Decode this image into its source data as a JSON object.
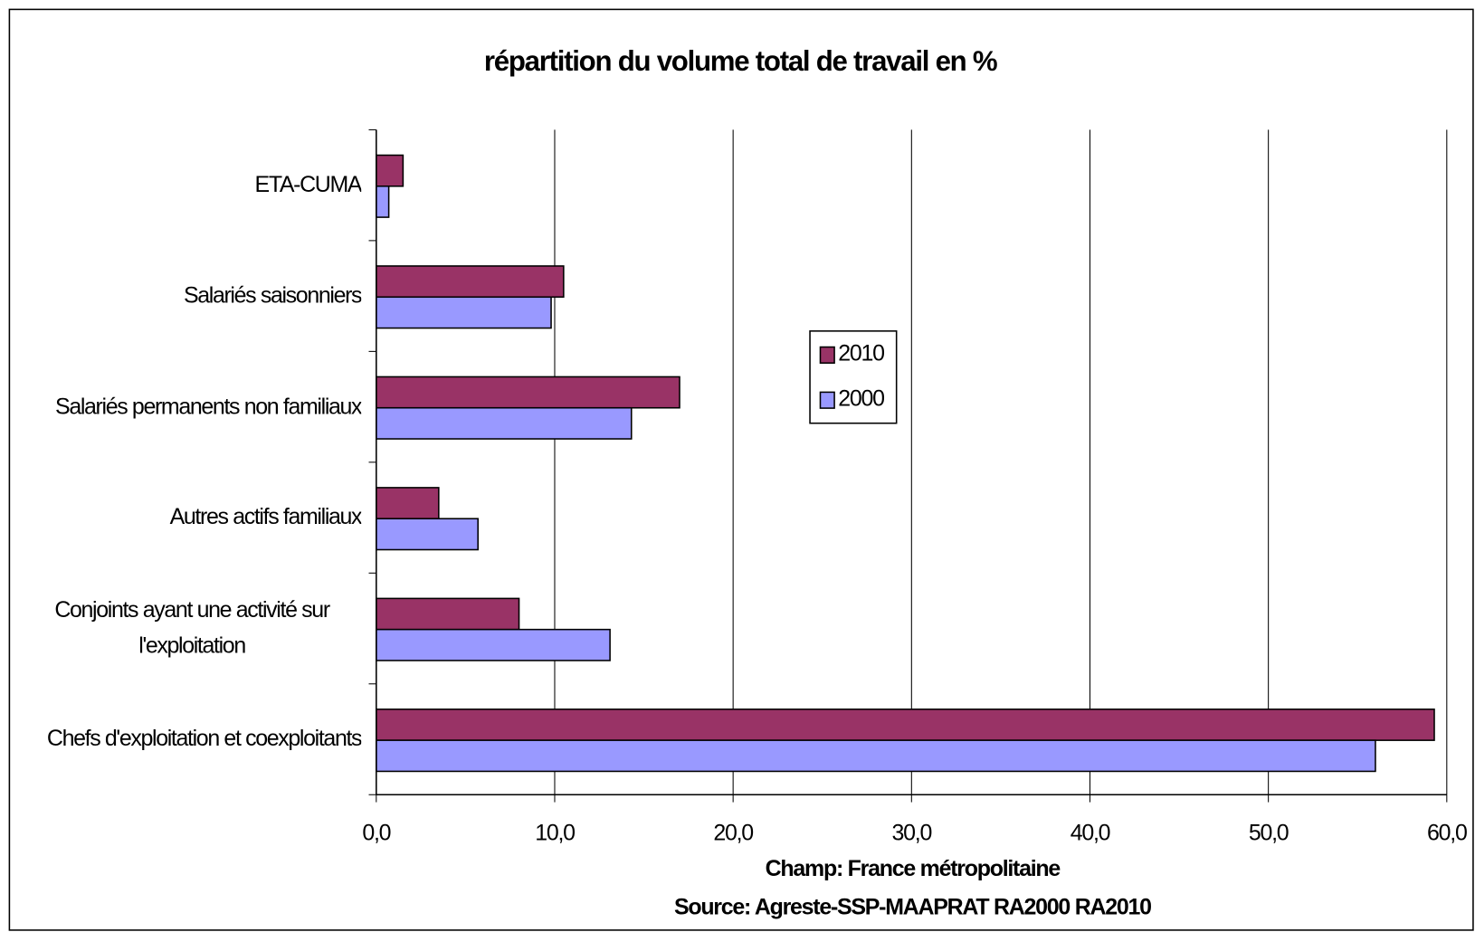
{
  "chart_data": {
    "type": "bar",
    "orientation": "horizontal",
    "title": "répartition du volume total de travail en %",
    "annotations": [
      "Champ: France métropolitaine",
      "Source: Agreste-SSP-MAAPRAT RA2000 RA2010"
    ],
    "categories": [
      "ETA-CUMA",
      "Salariés saisonniers",
      "Salariés permanents non familiaux",
      "Autres actifs familiaux",
      "Conjoints ayant une activité sur l'exploitation",
      "Chefs d'exploitation et coexploitants"
    ],
    "series": [
      {
        "name": "2010",
        "color": "#993366",
        "values": [
          1.5,
          10.5,
          17.0,
          3.5,
          8.0,
          59.3
        ]
      },
      {
        "name": "2000",
        "color": "#9999ff",
        "values": [
          0.7,
          9.8,
          14.3,
          5.7,
          13.1,
          56.0
        ]
      }
    ],
    "xlim": [
      0,
      60
    ],
    "xticks": [
      {
        "value": 0,
        "label": "0,0"
      },
      {
        "value": 10,
        "label": "10,0"
      },
      {
        "value": 20,
        "label": "20,0"
      },
      {
        "value": 30,
        "label": "30,0"
      },
      {
        "value": 40,
        "label": "40,0"
      },
      {
        "value": 50,
        "label": "50,0"
      },
      {
        "value": 60,
        "label": "60,0"
      }
    ],
    "grid": true
  }
}
